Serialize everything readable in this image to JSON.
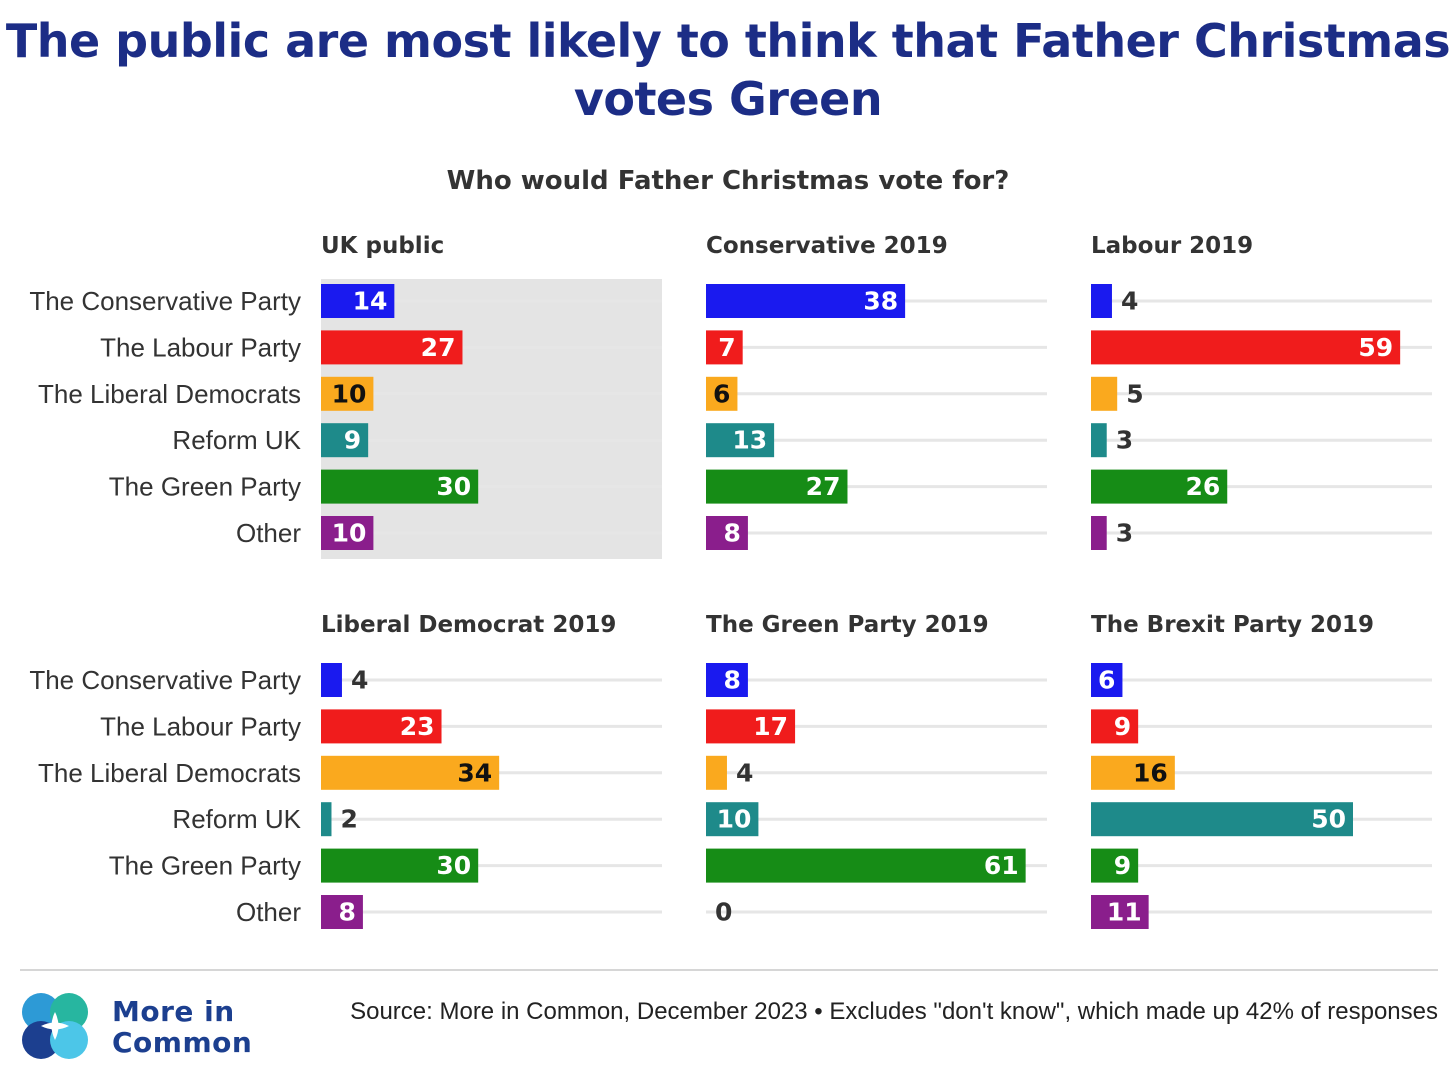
{
  "title": "The public are most likely to think that Father Christmas votes Green",
  "subtitle": "Who would Father Christmas vote for?",
  "source": "Source: More in Common, December 2023 • Excludes \"don't know\", which made up 42% of responses",
  "logo": {
    "text_line1": "More in",
    "text_line2": "Common",
    "colors": [
      "#2d9ad6",
      "#27b6a0",
      "#1c3f8f",
      "#4cc6e8"
    ]
  },
  "colors": {
    "The Conservative Party": "#1a1aef",
    "The Labour Party": "#f01c1c",
    "The Liberal Democrats": "#faa91e",
    "Reform UK": "#1e8a8a",
    "The Green Party": "#168c16",
    "Other": "#8a1e8c",
    "highlight_panel_bg": "#e4e4e4",
    "gridline": "#e6e6e6"
  },
  "chart_data": [
    {
      "type": "bar",
      "orientation": "horizontal",
      "title": "UK public",
      "highlighted": true,
      "categories": [
        "The Conservative Party",
        "The Labour Party",
        "The Liberal Democrats",
        "Reform UK",
        "The Green Party",
        "Other"
      ],
      "values": [
        14,
        27,
        10,
        9,
        30,
        10
      ],
      "xlim": [
        0,
        65
      ]
    },
    {
      "type": "bar",
      "orientation": "horizontal",
      "title": "Conservative 2019",
      "categories": [
        "The Conservative Party",
        "The Labour Party",
        "The Liberal Democrats",
        "Reform UK",
        "The Green Party",
        "Other"
      ],
      "values": [
        38,
        7,
        6,
        13,
        27,
        8
      ],
      "xlim": [
        0,
        65
      ]
    },
    {
      "type": "bar",
      "orientation": "horizontal",
      "title": "Labour 2019",
      "categories": [
        "The Conservative Party",
        "The Labour Party",
        "The Liberal Democrats",
        "Reform UK",
        "The Green Party",
        "Other"
      ],
      "values": [
        4,
        59,
        5,
        3,
        26,
        3
      ],
      "xlim": [
        0,
        65
      ]
    },
    {
      "type": "bar",
      "orientation": "horizontal",
      "title": "Liberal Democrat 2019",
      "categories": [
        "The Conservative Party",
        "The Labour Party",
        "The Liberal Democrats",
        "Reform UK",
        "The Green Party",
        "Other"
      ],
      "values": [
        4,
        23,
        34,
        2,
        30,
        8
      ],
      "xlim": [
        0,
        65
      ]
    },
    {
      "type": "bar",
      "orientation": "horizontal",
      "title": "The Green Party 2019",
      "categories": [
        "The Conservative Party",
        "The Labour Party",
        "The Liberal Democrats",
        "Reform UK",
        "The Green Party",
        "Other"
      ],
      "values": [
        8,
        17,
        4,
        10,
        61,
        0
      ],
      "xlim": [
        0,
        65
      ]
    },
    {
      "type": "bar",
      "orientation": "horizontal",
      "title": "The Brexit Party 2019",
      "categories": [
        "The Conservative Party",
        "The Labour Party",
        "The Liberal Democrats",
        "Reform UK",
        "The Green Party",
        "Other"
      ],
      "values": [
        6,
        9,
        16,
        50,
        9,
        11
      ],
      "xlim": [
        0,
        65
      ]
    }
  ]
}
